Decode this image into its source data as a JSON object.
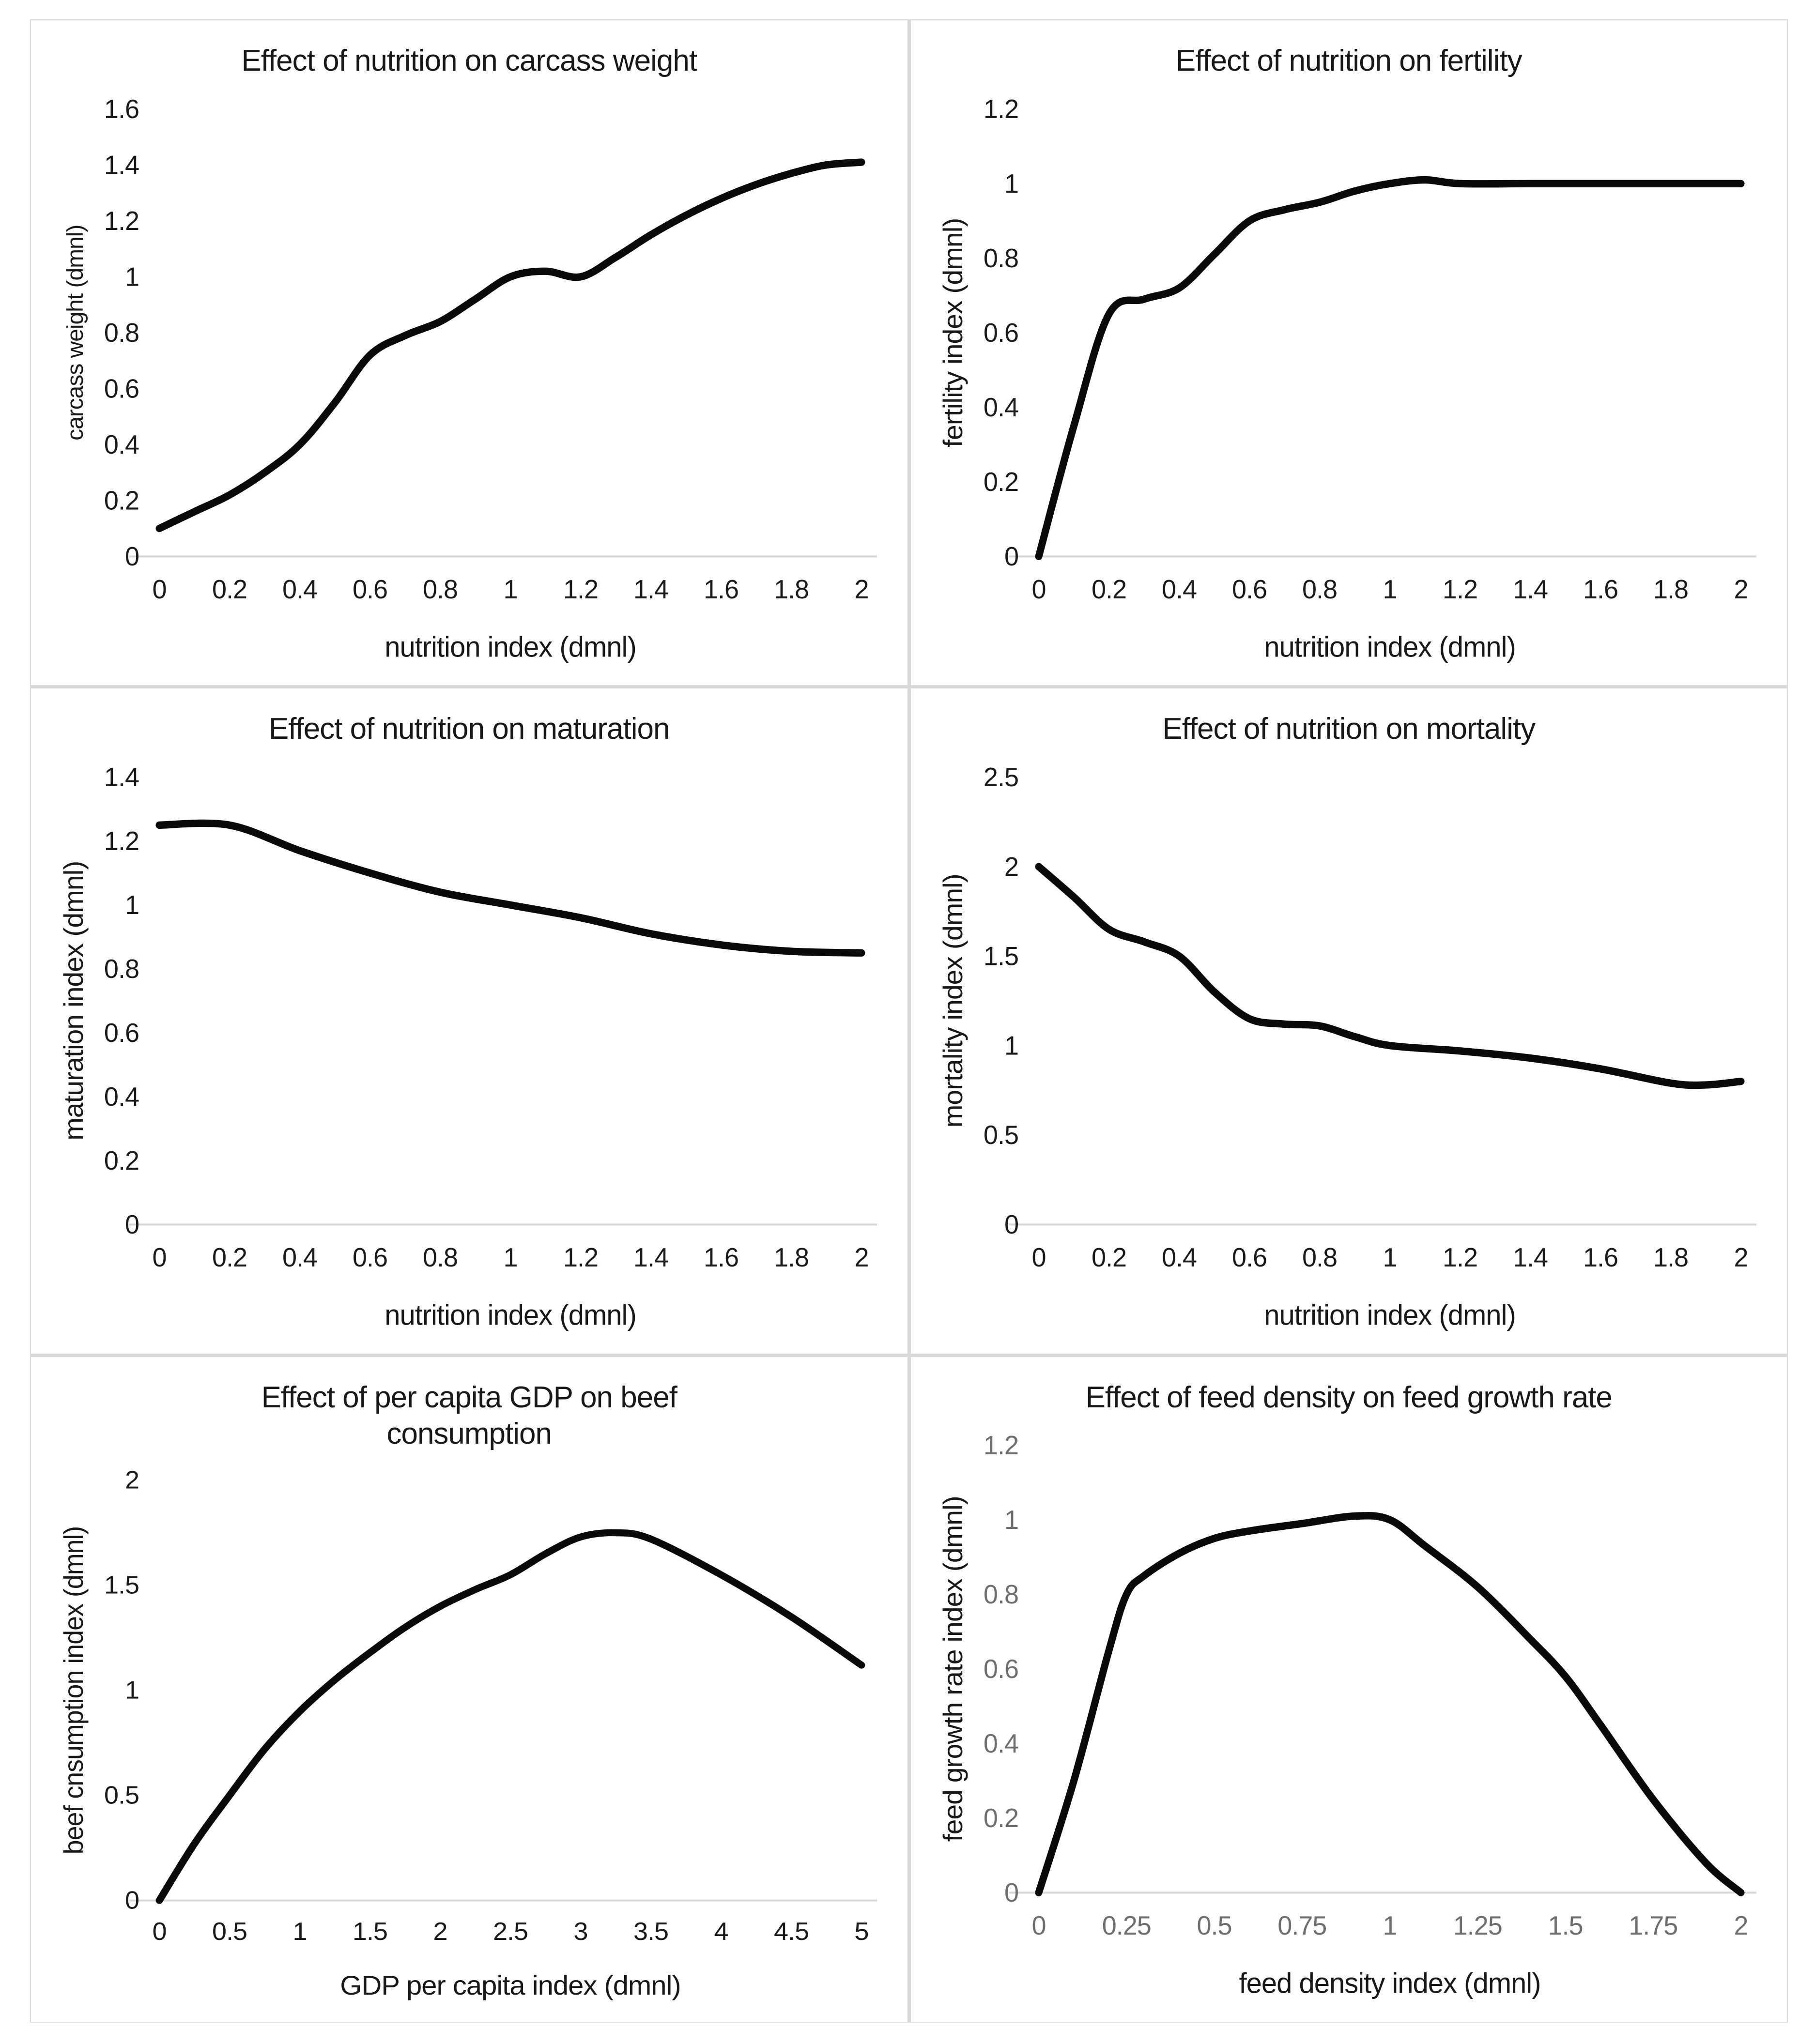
{
  "page": {
    "background": "#ffffff",
    "divider_color": "#d9d9d9"
  },
  "chart_data": [
    {
      "type": "line",
      "title": "Effect of nutrition on carcass weight",
      "xlabel": "nutrition index (dmnl)",
      "ylabel": "carcass weight (dmnl)",
      "xlim": [
        0,
        2
      ],
      "ylim": [
        0,
        1.6
      ],
      "xticks": [
        "0",
        "0.2",
        "0.4",
        "0.6",
        "0.8",
        "1",
        "1.2",
        "1.4",
        "1.6",
        "1.8",
        "2"
      ],
      "yticks": [
        "0",
        "0.2",
        "0.4",
        "0.6",
        "0.8",
        "1",
        "1.2",
        "1.4",
        "1.6"
      ],
      "x": [
        0,
        0.1,
        0.2,
        0.3,
        0.4,
        0.5,
        0.6,
        0.7,
        0.8,
        0.9,
        1.0,
        1.1,
        1.2,
        1.3,
        1.4,
        1.5,
        1.6,
        1.7,
        1.8,
        1.9,
        2.0
      ],
      "y": [
        0.1,
        0.16,
        0.22,
        0.3,
        0.4,
        0.55,
        0.72,
        0.79,
        0.84,
        0.92,
        1.0,
        1.02,
        1.0,
        1.07,
        1.15,
        1.22,
        1.28,
        1.33,
        1.37,
        1.4,
        1.41
      ],
      "grid": false,
      "legend": "none",
      "line_color": "#0a0a0a",
      "tick_color": "#1a1a1a",
      "label_color": "#181818",
      "axis_color": "#d9d9d9",
      "ylabel_size": 47
    },
    {
      "type": "line",
      "title": "Effect of nutrition on fertility",
      "xlabel": "nutrition index (dmnl)",
      "ylabel": "fertility index (dmnl)",
      "xlim": [
        0,
        2
      ],
      "ylim": [
        0,
        1.2
      ],
      "xticks": [
        "0",
        "0.2",
        "0.4",
        "0.6",
        "0.8",
        "1",
        "1.2",
        "1.4",
        "1.6",
        "1.8",
        "2"
      ],
      "yticks": [
        "0",
        "0.2",
        "0.4",
        "0.6",
        "0.8",
        "1",
        "1.2"
      ],
      "x": [
        0,
        0.1,
        0.2,
        0.3,
        0.4,
        0.5,
        0.6,
        0.7,
        0.8,
        0.9,
        1.0,
        1.1,
        1.2,
        1.4,
        1.6,
        1.8,
        2.0
      ],
      "y": [
        0,
        0.35,
        0.65,
        0.69,
        0.72,
        0.81,
        0.9,
        0.93,
        0.95,
        0.98,
        1.0,
        1.01,
        1.0,
        1.0,
        1.0,
        1.0,
        1.0
      ],
      "grid": false,
      "legend": "none",
      "line_color": "#0a0a0a",
      "tick_color": "#1a1a1a",
      "label_color": "#181818",
      "axis_color": "#d9d9d9",
      "ylabel_size": 56
    },
    {
      "type": "line",
      "title": "Effect of nutrition on maturation",
      "xlabel": "nutrition index (dmnl)",
      "ylabel": "maturation index (dmnl)",
      "xlim": [
        0,
        2
      ],
      "ylim": [
        0,
        1.4
      ],
      "xticks": [
        "0",
        "0.2",
        "0.4",
        "0.6",
        "0.8",
        "1",
        "1.2",
        "1.4",
        "1.6",
        "1.8",
        "2"
      ],
      "yticks": [
        "0",
        "0.2",
        "0.4",
        "0.6",
        "0.8",
        "1",
        "1.2",
        "1.4"
      ],
      "x": [
        0,
        0.2,
        0.4,
        0.6,
        0.8,
        1.0,
        1.2,
        1.4,
        1.6,
        1.8,
        2.0
      ],
      "y": [
        1.25,
        1.25,
        1.17,
        1.1,
        1.04,
        1.0,
        0.96,
        0.91,
        0.875,
        0.855,
        0.85
      ],
      "grid": false,
      "legend": "none",
      "line_color": "#0a0a0a",
      "tick_color": "#1a1a1a",
      "label_color": "#181818",
      "axis_color": "#d9d9d9",
      "ylabel_size": 56
    },
    {
      "type": "line",
      "title": "Effect of nutrition on mortality",
      "xlabel": "nutrition index (dmnl)",
      "ylabel": "mortality index (dmnl)",
      "xlim": [
        0,
        2
      ],
      "ylim": [
        0,
        2.5
      ],
      "xticks": [
        "0",
        "0.2",
        "0.4",
        "0.6",
        "0.8",
        "1",
        "1.2",
        "1.4",
        "1.6",
        "1.8",
        "2"
      ],
      "yticks": [
        "0",
        "0.5",
        "1",
        "1.5",
        "2",
        "2.5"
      ],
      "x": [
        0,
        0.1,
        0.2,
        0.3,
        0.4,
        0.5,
        0.6,
        0.7,
        0.8,
        0.9,
        1.0,
        1.2,
        1.4,
        1.6,
        1.8,
        1.9,
        2.0
      ],
      "y": [
        2.0,
        1.83,
        1.65,
        1.58,
        1.5,
        1.3,
        1.15,
        1.12,
        1.11,
        1.05,
        1.0,
        0.97,
        0.93,
        0.87,
        0.79,
        0.78,
        0.8
      ],
      "grid": false,
      "legend": "none",
      "line_color": "#0a0a0a",
      "tick_color": "#1a1a1a",
      "label_color": "#181818",
      "axis_color": "#d9d9d9",
      "ylabel_size": 56
    },
    {
      "type": "line",
      "title": "Effect of per capita GDP on beef consumption",
      "xlabel": "GDP per capita index (dmnl)",
      "ylabel": "beef  cnsumption index (dmnl)",
      "xlim": [
        0,
        5
      ],
      "ylim": [
        0,
        2
      ],
      "xticks": [
        "0",
        "0.5",
        "1",
        "1.5",
        "2",
        "2.5",
        "3",
        "3.5",
        "4",
        "4.5",
        "5"
      ],
      "yticks": [
        "0",
        "0.5",
        "1",
        "1.5",
        "2"
      ],
      "x": [
        0,
        0.25,
        0.5,
        0.75,
        1.0,
        1.25,
        1.5,
        1.75,
        2.0,
        2.25,
        2.5,
        2.75,
        3.0,
        3.25,
        3.5,
        4.0,
        4.5,
        5.0
      ],
      "y": [
        0,
        0.27,
        0.5,
        0.72,
        0.9,
        1.05,
        1.18,
        1.3,
        1.4,
        1.48,
        1.55,
        1.65,
        1.73,
        1.75,
        1.72,
        1.55,
        1.35,
        1.12
      ],
      "grid": false,
      "legend": "none",
      "line_color": "#0a0a0a",
      "tick_color": "#1a1a1a",
      "label_color": "#181818",
      "axis_color": "#d9d9d9",
      "ylabel_size": 56
    },
    {
      "type": "line",
      "title": "Effect of feed density on feed growth rate",
      "xlabel": "feed density index (dmnl)",
      "ylabel": "feed growth rate index (dmnl)",
      "xlim": [
        0,
        2
      ],
      "ylim": [
        0,
        1.2
      ],
      "xticks": [
        "0",
        "0.25",
        "0.5",
        "0.75",
        "1",
        "1.25",
        "1.5",
        "1.75",
        "2"
      ],
      "yticks": [
        "0",
        "0.2",
        "0.4",
        "0.6",
        "0.8",
        "1",
        "1.2"
      ],
      "x": [
        0,
        0.1,
        0.2,
        0.25,
        0.3,
        0.4,
        0.5,
        0.6,
        0.75,
        0.9,
        1.0,
        1.1,
        1.25,
        1.4,
        1.5,
        1.6,
        1.75,
        1.9,
        2.0
      ],
      "y": [
        0,
        0.3,
        0.65,
        0.8,
        0.85,
        0.91,
        0.95,
        0.97,
        0.99,
        1.01,
        1.0,
        0.93,
        0.82,
        0.68,
        0.58,
        0.45,
        0.25,
        0.08,
        0.0
      ],
      "grid": false,
      "legend": "none",
      "line_color": "#0a0a0a",
      "tick_color": "#6e6e6e",
      "label_color": "#181818",
      "axis_color": "#d9d9d9",
      "ylabel_size": 56
    }
  ]
}
